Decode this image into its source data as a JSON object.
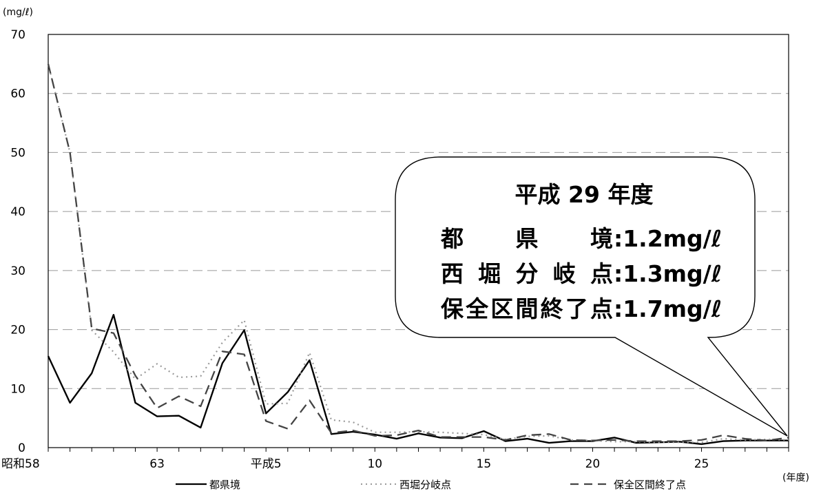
{
  "chart_data": {
    "type": "line",
    "y_unit": "(mg/ℓ)",
    "x_unit": "(年度)",
    "ylim": [
      0,
      70
    ],
    "y_ticks": [
      0,
      10,
      20,
      30,
      40,
      50,
      60,
      70
    ],
    "grid": true,
    "legend_position": "bottom",
    "x_years": [
      1983,
      1984,
      1985,
      1986,
      1987,
      1988,
      1989,
      1990,
      1991,
      1992,
      1993,
      1994,
      1995,
      1996,
      1997,
      1998,
      1999,
      2000,
      2001,
      2002,
      2003,
      2004,
      2005,
      2006,
      2007,
      2008,
      2009,
      2010,
      2011,
      2012,
      2013,
      2014,
      2015,
      2016,
      2017
    ],
    "x_tick_labels": [
      {
        "year": 1983,
        "label": "昭和58"
      },
      {
        "year": 1988,
        "label": "63"
      },
      {
        "year": 1993,
        "label": "平成5"
      },
      {
        "year": 1998,
        "label": "10"
      },
      {
        "year": 2003,
        "label": "15"
      },
      {
        "year": 2008,
        "label": "20"
      },
      {
        "year": 2013,
        "label": "25"
      }
    ],
    "series": [
      {
        "name": "都県境",
        "style": "solid",
        "color": "#000000",
        "values": [
          15.5,
          7.6,
          12.6,
          22.5,
          7.6,
          5.3,
          5.4,
          3.4,
          14.3,
          19.9,
          5.8,
          9.4,
          14.8,
          2.3,
          2.7,
          2.2,
          1.5,
          2.4,
          1.7,
          1.6,
          2.8,
          1.1,
          1.5,
          0.8,
          1.1,
          1.1,
          1.7,
          0.8,
          0.9,
          1.0,
          0.6,
          1.1,
          1.2,
          1.2,
          1.2
        ]
      },
      {
        "name": "西堀分岐点",
        "style": "dotted",
        "color": "#999999",
        "values": [
          65,
          50,
          19.9,
          16.2,
          11.6,
          14.2,
          11.9,
          12.1,
          17.8,
          21.6,
          7.4,
          7.5,
          16.1,
          4.7,
          4.3,
          2.6,
          2.6,
          2.7,
          2.6,
          2.4,
          2.2,
          1.4,
          1.9,
          2.0,
          1.3,
          1.2,
          1.0,
          1.0,
          0.9,
          0.9,
          0.9,
          1.5,
          1.3,
          1.4,
          1.3
        ]
      },
      {
        "name": "保全区間終了点",
        "style": "dashed",
        "color": "#444444",
        "values": [
          65,
          50,
          20.2,
          19.4,
          12.2,
          6.7,
          8.7,
          7.0,
          16.3,
          15.8,
          4.5,
          3.2,
          8.0,
          2.5,
          2.9,
          2.0,
          2.1,
          2.9,
          1.8,
          1.8,
          1.8,
          1.3,
          2.1,
          2.3,
          1.3,
          1.2,
          1.3,
          1.1,
          1.1,
          1.1,
          1.3,
          2.1,
          1.5,
          1.2,
          1.7
        ]
      }
    ],
    "annotation": {
      "title": "平成 29 年度",
      "lines": [
        {
          "label": "都 県 境",
          "value": ":1.2mg/ℓ"
        },
        {
          "label": "西堀分岐点",
          "value": ":1.3mg/ℓ"
        },
        {
          "label": "保全区間終了点",
          "value": ":1.7mg/ℓ"
        }
      ]
    }
  }
}
